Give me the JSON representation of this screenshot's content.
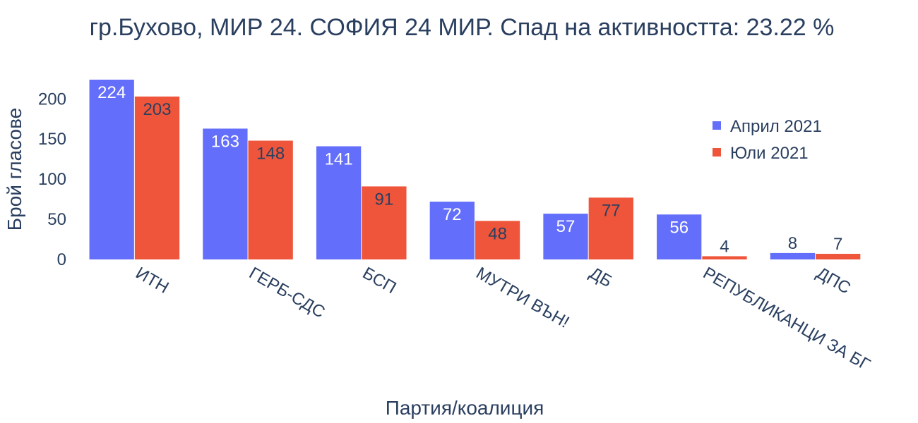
{
  "chart_data": {
    "type": "bar",
    "title": "гр.Бухово, МИР 24. СОФИЯ 24 МИР. Спад на активността: 23.22 %",
    "xlabel": "Партия/коалиция",
    "ylabel": "Брой гласове",
    "categories": [
      "ИТН",
      "ГЕРБ-СДС",
      "БСП",
      "МУТРИ ВЪН!",
      "ДБ",
      "РЕПУБЛИКАНЦИ ЗА БГ",
      "ДПС"
    ],
    "series": [
      {
        "name": "Април 2021",
        "color": "#636efa",
        "values": [
          224,
          163,
          141,
          72,
          57,
          56,
          8
        ]
      },
      {
        "name": "Юли 2021",
        "color": "#ef553b",
        "values": [
          203,
          148,
          91,
          48,
          77,
          4,
          7
        ]
      }
    ],
    "yticks": [
      0,
      50,
      100,
      150,
      200
    ],
    "ylim": [
      0,
      224
    ],
    "grid": false,
    "legend_position": "top-right"
  }
}
